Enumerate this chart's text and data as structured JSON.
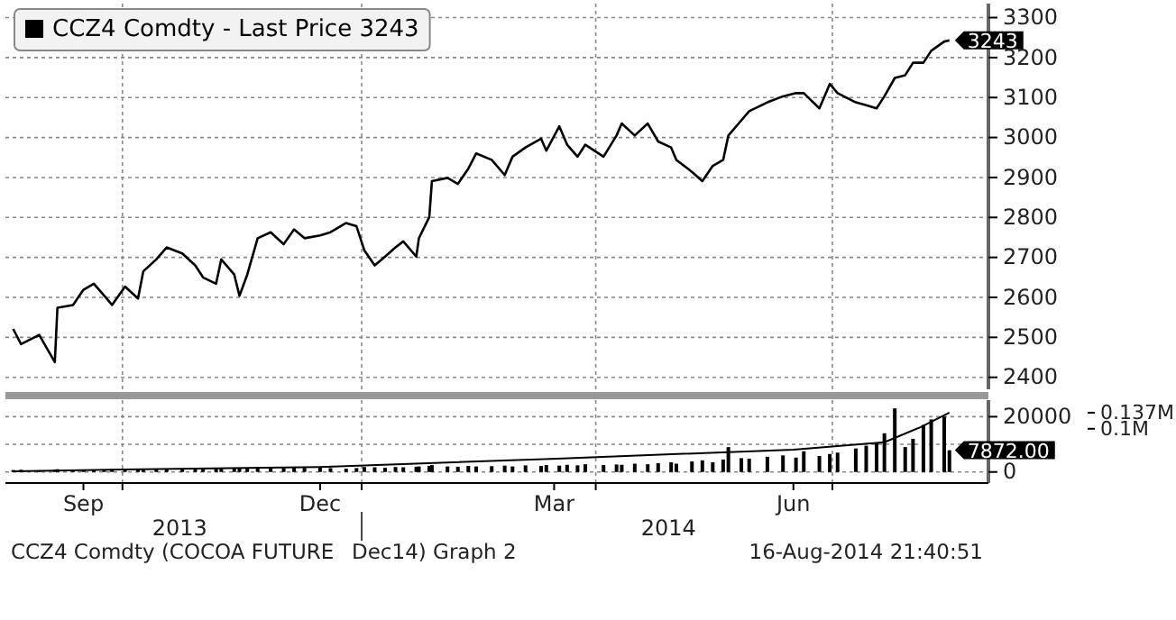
{
  "chart_data": [
    {
      "type": "line",
      "legend": "top left",
      "grid": true,
      "tick_labels": "y",
      "xlim": [
        "2013-08-17",
        "2014-08-30"
      ],
      "ylim": [
        2370,
        3335
      ],
      "xticks": [
        {
          "value": "2013-10-01",
          "label": null
        },
        {
          "value": "2014-01-01",
          "label": null
        },
        {
          "value": "2014-04-01",
          "label": null
        },
        {
          "value": "2014-07-01",
          "label": null
        }
      ],
      "yticks": [
        2400,
        2500,
        2600,
        2700,
        2800,
        2900,
        3000,
        3100,
        3200,
        3300
      ],
      "annotations": [
        {
          "text": "3243",
          "x": "2014-08-15",
          "y": 3243
        }
      ],
      "x": [
        "2013-08-20",
        "2013-08-23",
        "2013-08-30",
        "2013-09-05",
        "2013-09-06",
        "2013-09-12",
        "2013-09-16",
        "2013-09-20",
        "2013-09-24",
        "2013-09-27",
        "2013-10-02",
        "2013-10-07",
        "2013-10-09",
        "2013-10-14",
        "2013-10-18",
        "2013-10-24",
        "2013-10-29",
        "2013-11-01",
        "2013-11-06",
        "2013-11-08",
        "2013-11-13",
        "2013-11-15",
        "2013-11-18",
        "2013-11-22",
        "2013-11-27",
        "2013-12-02",
        "2013-12-06",
        "2013-12-10",
        "2013-12-16",
        "2013-12-20",
        "2013-12-26",
        "2013-12-30",
        "2014-01-02",
        "2014-01-06",
        "2014-01-10",
        "2014-01-14",
        "2014-01-17",
        "2014-01-22",
        "2014-01-23",
        "2014-01-27",
        "2014-01-28",
        "2014-02-03",
        "2014-02-07",
        "2014-02-11",
        "2014-02-14",
        "2014-02-20",
        "2014-02-25",
        "2014-02-28",
        "2014-03-05",
        "2014-03-11",
        "2014-03-13",
        "2014-03-18",
        "2014-03-21",
        "2014-03-25",
        "2014-03-28",
        "2014-04-04",
        "2014-04-09",
        "2014-04-11",
        "2014-04-16",
        "2014-04-21",
        "2014-04-25",
        "2014-04-30",
        "2014-05-02",
        "2014-05-08",
        "2014-05-12",
        "2014-05-16",
        "2014-05-20",
        "2014-05-22",
        "2014-05-27",
        "2014-05-30",
        "2014-06-06",
        "2014-06-12",
        "2014-06-17",
        "2014-06-20",
        "2014-06-26",
        "2014-06-30",
        "2014-07-03",
        "2014-07-10",
        "2014-07-14",
        "2014-07-18",
        "2014-07-21",
        "2014-07-25",
        "2014-07-29",
        "2014-08-01",
        "2014-08-05",
        "2014-08-08",
        "2014-08-13",
        "2014-08-15"
      ],
      "series": [
        {
          "name": "CCZ4 Comdty - Last Price 3243",
          "color": "#000000",
          "values": [
            2521,
            2483,
            2506,
            2438,
            2574,
            2581,
            2619,
            2634,
            2604,
            2581,
            2627,
            2597,
            2665,
            2695,
            2725,
            2710,
            2680,
            2650,
            2634,
            2695,
            2657,
            2604,
            2657,
            2748,
            2763,
            2733,
            2770,
            2748,
            2755,
            2763,
            2786,
            2778,
            2718,
            2680,
            2702,
            2725,
            2740,
            2702,
            2748,
            2801,
            2891,
            2899,
            2884,
            2922,
            2960,
            2944,
            2906,
            2952,
            2975,
            2997,
            2967,
            3028,
            2982,
            2952,
            2982,
            2952,
            3005,
            3035,
            3005,
            3035,
            2990,
            2975,
            2944,
            2914,
            2891,
            2929,
            2944,
            3005,
            3043,
            3066,
            3088,
            3103,
            3111,
            3111,
            3073,
            3134,
            3111,
            3088,
            3081,
            3073,
            3103,
            3149,
            3156,
            3187,
            3187,
            3217,
            3240,
            3243
          ]
        }
      ]
    },
    {
      "type": "bar",
      "grid": true,
      "xlim": [
        "2013-08-17",
        "2014-08-30"
      ],
      "ylim": [
        -4000,
        26000
      ],
      "y2lim": [
        -25000,
        166000
      ],
      "xticks": [
        {
          "value": "2013-09-16",
          "label": "Sep"
        },
        {
          "value": "2013-10-01",
          "label": null
        },
        {
          "value": "2013-12-16",
          "label": "Dec"
        },
        {
          "value": "2014-01-01",
          "label": null
        },
        {
          "value": "2014-03-16",
          "label": "Mar"
        },
        {
          "value": "2014-04-01",
          "label": null
        },
        {
          "value": "2014-06-16",
          "label": "Jun"
        },
        {
          "value": "2014-07-01",
          "label": null
        }
      ],
      "x2lim": [
        "2013-08-17",
        "2014-08-30"
      ],
      "x2ticks": [
        {
          "value": "2013-10-23",
          "label": "2013"
        },
        {
          "value": "2014-01-01",
          "label": null
        },
        {
          "value": "2014-04-29",
          "label": "2014"
        }
      ],
      "yticks": [
        0,
        {
          "value": 10000,
          "label": null
        },
        20000
      ],
      "y2ticks": [
        {
          "value": 100000,
          "label": "0.1M"
        },
        {
          "value": 137000,
          "label": "0.137M"
        }
      ],
      "annotations": [
        {
          "text": "7872.00",
          "x": "2014-08-15",
          "y": 7872
        },
        "CCZ4 Comdty (COCOA FUTURE",
        {
          "text": "Dec14) Graph 2"
        },
        "16-Aug-2014 21:40:51"
      ],
      "x": [
        "2013-08-20",
        "2013-08-23",
        "2013-08-30",
        "2013-09-05",
        "2013-09-06",
        "2013-09-12",
        "2013-09-16",
        "2013-09-20",
        "2013-09-24",
        "2013-09-27",
        "2013-10-02",
        "2013-10-07",
        "2013-10-09",
        "2013-10-14",
        "2013-10-18",
        "2013-10-24",
        "2013-10-29",
        "2013-11-01",
        "2013-11-06",
        "2013-11-08",
        "2013-11-13",
        "2013-11-15",
        "2013-11-18",
        "2013-11-22",
        "2013-11-27",
        "2013-12-02",
        "2013-12-06",
        "2013-12-10",
        "2013-12-16",
        "2013-12-20",
        "2013-12-26",
        "2013-12-30",
        "2014-01-02",
        "2014-01-06",
        "2014-01-10",
        "2014-01-14",
        "2014-01-17",
        "2014-01-22",
        "2014-01-23",
        "2014-01-27",
        "2014-01-28",
        "2014-02-03",
        "2014-02-07",
        "2014-02-11",
        "2014-02-14",
        "2014-02-20",
        "2014-02-25",
        "2014-02-28",
        "2014-03-05",
        "2014-03-11",
        "2014-03-13",
        "2014-03-18",
        "2014-03-21",
        "2014-03-25",
        "2014-03-28",
        "2014-04-04",
        "2014-04-09",
        "2014-04-11",
        "2014-04-16",
        "2014-04-21",
        "2014-04-25",
        "2014-04-30",
        "2014-05-02",
        "2014-05-08",
        "2014-05-12",
        "2014-05-16",
        "2014-05-20",
        "2014-05-22",
        "2014-05-27",
        "2014-05-30",
        "2014-06-06",
        "2014-06-12",
        "2014-06-17",
        "2014-06-20",
        "2014-06-26",
        "2014-06-30",
        "2014-07-03",
        "2014-07-10",
        "2014-07-14",
        "2014-07-18",
        "2014-07-21",
        "2014-07-25",
        "2014-07-29",
        "2014-08-01",
        "2014-08-05",
        "2014-08-08",
        "2014-08-13",
        "2014-08-15"
      ],
      "series": [
        {
          "color": "#000000",
          "values": [
            700,
            800,
            600,
            900,
            1000,
            800,
            900,
            800,
            900,
            1000,
            1100,
            1000,
            1200,
            1100,
            1000,
            1200,
            1100,
            1300,
            1200,
            1400,
            1200,
            1500,
            1300,
            1600,
            1400,
            1500,
            1700,
            1500,
            1600,
            1400,
            1200,
            1400,
            1800,
            1700,
            1500,
            1800,
            1700,
            1900,
            2000,
            2200,
            2500,
            2000,
            1900,
            2200,
            2000,
            2100,
            2300,
            2000,
            2400,
            2200,
            2500,
            2300,
            2600,
            2400,
            2800,
            2500,
            2700,
            2600,
            3000,
            2800,
            3200,
            3500,
            3000,
            3800,
            4200,
            3500,
            4500,
            9000,
            5000,
            4800,
            5500,
            6000,
            5200,
            7500,
            5800,
            6500,
            7000,
            8500,
            9500,
            10500,
            14000,
            23000,
            9000,
            12000,
            17000,
            19000,
            20000,
            7872
          ]
        },
        {
          "type": "line",
          "axis": "y2",
          "color": "#000000",
          "x": [
            "2013-08-20",
            "2013-10-01",
            "2013-12-16",
            "2014-03-17",
            "2014-06-16",
            "2014-07-21",
            "2014-08-04",
            "2014-08-15"
          ],
          "values": [
            2000,
            6000,
            12000,
            31000,
            52000,
            69000,
            104000,
            137000
          ]
        }
      ]
    }
  ]
}
